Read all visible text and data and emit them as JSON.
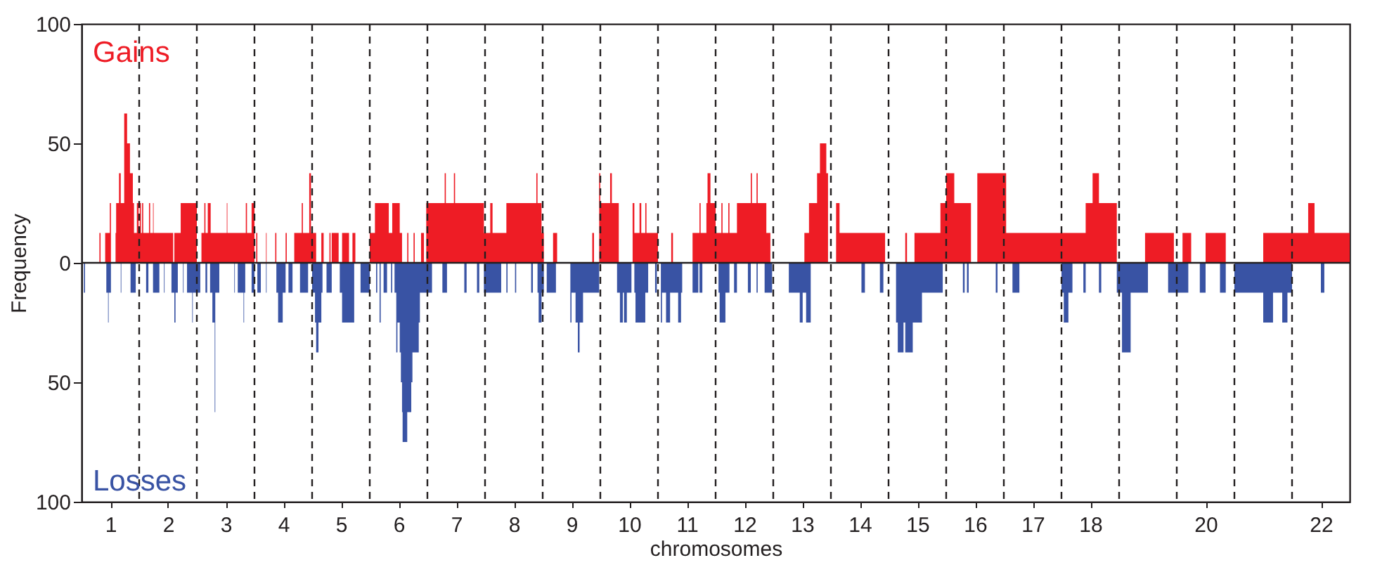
{
  "chart_data": {
    "type": "area",
    "xlabel": "chromosomes",
    "ylabel": "Frequency",
    "xlim": [
      0.5,
      22.5
    ],
    "ylim": [
      -100,
      100
    ],
    "xticks": [
      1,
      2,
      3,
      4,
      5,
      6,
      7,
      8,
      9,
      10,
      11,
      12,
      13,
      14,
      15,
      16,
      17,
      18,
      20,
      22
    ],
    "yticks": [
      {
        "value": -100,
        "label": "100"
      },
      {
        "value": -50,
        "label": "50"
      },
      0,
      50,
      100
    ],
    "grid": false,
    "ref_lines": [
      {
        "axis": "y",
        "value": 0,
        "line_style": "solid",
        "color": "#231f20"
      },
      {
        "axis": "x",
        "value": 1.5,
        "line_style": "dashed",
        "color": "#231f20"
      },
      {
        "axis": "x",
        "value": 2.5,
        "line_style": "dashed",
        "color": "#231f20"
      },
      {
        "axis": "x",
        "value": 3.5,
        "line_style": "dashed",
        "color": "#231f20"
      },
      {
        "axis": "x",
        "value": 4.5,
        "line_style": "dashed",
        "color": "#231f20"
      },
      {
        "axis": "x",
        "value": 5.5,
        "line_style": "dashed",
        "color": "#231f20"
      },
      {
        "axis": "x",
        "value": 6.5,
        "line_style": "dashed",
        "color": "#231f20"
      },
      {
        "axis": "x",
        "value": 7.5,
        "line_style": "dashed",
        "color": "#231f20"
      },
      {
        "axis": "x",
        "value": 8.5,
        "line_style": "dashed",
        "color": "#231f20"
      },
      {
        "axis": "x",
        "value": 9.5,
        "line_style": "dashed",
        "color": "#231f20"
      },
      {
        "axis": "x",
        "value": 10.5,
        "line_style": "dashed",
        "color": "#231f20"
      },
      {
        "axis": "x",
        "value": 11.5,
        "line_style": "dashed",
        "color": "#231f20"
      },
      {
        "axis": "x",
        "value": 12.5,
        "line_style": "dashed",
        "color": "#231f20"
      },
      {
        "axis": "x",
        "value": 13.5,
        "line_style": "dashed",
        "color": "#231f20"
      },
      {
        "axis": "x",
        "value": 14.5,
        "line_style": "dashed",
        "color": "#231f20"
      },
      {
        "axis": "x",
        "value": 15.5,
        "line_style": "dashed",
        "color": "#231f20"
      },
      {
        "axis": "x",
        "value": 16.5,
        "line_style": "dashed",
        "color": "#231f20"
      },
      {
        "axis": "x",
        "value": 17.5,
        "line_style": "dashed",
        "color": "#231f20"
      },
      {
        "axis": "x",
        "value": 18.5,
        "line_style": "dashed",
        "color": "#231f20"
      },
      {
        "axis": "x",
        "value": 19.5,
        "line_style": "dashed",
        "color": "#231f20"
      },
      {
        "axis": "x",
        "value": 20.5,
        "line_style": "dashed",
        "color": "#231f20"
      },
      {
        "axis": "x",
        "value": 21.5,
        "line_style": "dashed",
        "color": "#231f20"
      }
    ],
    "series": [
      {
        "name": "Gains",
        "color": "#ee1c25",
        "x": [
          0.5,
          0.81,
          0.83,
          0.91,
          0.99,
          1.01,
          1.09,
          1.1,
          1.15,
          1.18,
          1.24,
          1.29,
          1.34,
          1.39,
          1.41,
          1.46,
          1.49,
          1.51,
          1.53,
          1.55,
          1.57,
          1.67,
          1.69,
          1.74,
          1.75,
          2.09,
          2.11,
          2.22,
          2.5,
          2.58,
          2.63,
          2.65,
          2.69,
          2.74,
          3.02,
          3.03,
          3.35,
          3.37,
          3.45,
          3.5,
          3.53,
          3.55,
          3.7,
          3.71,
          3.86,
          3.88,
          4.04,
          4.06,
          4.19,
          4.32,
          4.34,
          4.45,
          4.48,
          4.57,
          4.66,
          4.7,
          4.8,
          4.82,
          4.84,
          4.96,
          5.02,
          5.14,
          5.2,
          5.25,
          5.5,
          5.59,
          5.83,
          5.89,
          6.02,
          6.06,
          6.15,
          6.17,
          6.26,
          6.28,
          6.39,
          6.44,
          6.48,
          6.8,
          6.82,
          6.96,
          6.98,
          7.48,
          7.59,
          7.63,
          7.78,
          7.87,
          8.39,
          8.41,
          8.48,
          8.52,
          8.68,
          8.75,
          9.36,
          9.39,
          9.48,
          9.5,
          9.67,
          9.7,
          9.82,
          10.06,
          10.09,
          10.18,
          10.21,
          10.28,
          10.3,
          10.5,
          10.73,
          10.76,
          11.1,
          11.22,
          11.24,
          11.34,
          11.36,
          11.41,
          11.5,
          11.6,
          11.62,
          11.72,
          11.74,
          11.87,
          12.11,
          12.13,
          12.21,
          12.23,
          12.38,
          12.45,
          13.04,
          13.12,
          13.26,
          13.31,
          13.42,
          13.45,
          13.59,
          13.65,
          14.44,
          14.79,
          14.82,
          14.95,
          15.4,
          15.5,
          15.64,
          15.93,
          16.04,
          16.54,
          17.92,
          18.04,
          18.15,
          18.46,
          18.95,
          19.45,
          19.6,
          19.75,
          20.0,
          20.35,
          21.0,
          21.78,
          21.89,
          22.5
        ],
        "values": [
          0,
          12.5,
          0,
          12.5,
          25,
          0,
          12.5,
          25,
          37.5,
          25,
          62.5,
          50,
          37.5,
          25,
          12.5,
          25,
          12.5,
          25,
          12.5,
          25,
          12.5,
          25,
          12.5,
          25,
          12.5,
          0,
          12.5,
          25,
          0,
          12.5,
          25,
          12.5,
          25,
          12.5,
          25,
          12.5,
          25,
          12.5,
          25,
          0,
          12.5,
          0,
          12.5,
          0,
          12.5,
          0,
          12.5,
          0,
          12.5,
          25,
          12.5,
          37.5,
          12.5,
          0,
          12.5,
          0,
          12.5,
          0,
          12.5,
          0,
          12.5,
          0,
          12.5,
          0,
          12.5,
          25,
          12.5,
          25,
          12.5,
          0,
          12.5,
          0,
          12.5,
          0,
          12.5,
          0,
          25,
          37.5,
          25,
          37.5,
          25,
          12.5,
          25,
          12.5,
          12.5,
          25,
          37.5,
          25,
          12.5,
          0,
          12.5,
          0,
          12.5,
          0,
          37.5,
          25,
          37.5,
          25,
          0,
          25,
          12.5,
          25,
          12.5,
          25,
          12.5,
          0,
          12.5,
          0,
          12.5,
          25,
          12.5,
          25,
          37.5,
          25,
          12.5,
          25,
          12.5,
          25,
          12.5,
          25,
          37.5,
          25,
          37.5,
          25,
          12.5,
          0,
          12.5,
          25,
          37.5,
          50,
          37.5,
          0,
          25,
          12.5,
          0,
          12.5,
          0,
          12.5,
          25,
          37.5,
          25,
          0,
          37.5,
          12.5,
          25,
          37.5,
          25,
          0,
          12.5,
          0,
          12.5,
          0,
          12.5,
          0,
          12.5,
          25,
          12.5,
          0
        ]
      },
      {
        "name": "Losses",
        "color": "#3953a4",
        "x": [
          0.5,
          0.54,
          0.56,
          0.93,
          0.96,
          0.97,
          1.01,
          1.18,
          1.19,
          1.35,
          1.44,
          1.62,
          1.66,
          1.74,
          1.85,
          1.93,
          1.94,
          2.06,
          2.11,
          2.13,
          2.17,
          2.26,
          2.27,
          2.33,
          2.42,
          2.43,
          2.56,
          2.65,
          2.68,
          2.73,
          2.77,
          2.81,
          2.82,
          2.89,
          3.15,
          3.16,
          3.21,
          3.31,
          3.32,
          3.34,
          3.45,
          3.5,
          3.55,
          3.61,
          3.7,
          3.71,
          3.88,
          3.91,
          3.99,
          4.04,
          4.09,
          4.16,
          4.29,
          4.43,
          4.5,
          4.55,
          4.57,
          4.61,
          4.66,
          4.68,
          4.75,
          4.84,
          4.98,
          5.02,
          5.23,
          5.34,
          5.5,
          5.61,
          5.63,
          5.67,
          5.69,
          5.74,
          5.8,
          5.87,
          5.89,
          5.93,
          5.96,
          5.98,
          6.02,
          6.04,
          6.06,
          6.07,
          6.15,
          6.22,
          6.24,
          6.35,
          6.37,
          6.58,
          6.76,
          6.84,
          7.14,
          7.18,
          7.36,
          7.4,
          7.48,
          7.78,
          7.87,
          7.89,
          8.02,
          8.04,
          8.3,
          8.33,
          8.41,
          8.43,
          8.48,
          8.52,
          8.57,
          8.73,
          8.98,
          9.0,
          9.07,
          9.11,
          9.14,
          9.2,
          9.48,
          9.79,
          9.84,
          9.89,
          9.91,
          9.96,
          10.04,
          10.09,
          10.11,
          10.28,
          10.33,
          10.45,
          10.48,
          10.55,
          10.57,
          10.64,
          10.71,
          10.85,
          10.9,
          10.92,
          11.1,
          11.2,
          11.22,
          11.27,
          11.55,
          11.57,
          11.67,
          11.74,
          11.82,
          11.87,
          12.06,
          12.11,
          12.21,
          12.23,
          12.35,
          12.48,
          12.77,
          12.96,
          13.01,
          13.07,
          13.15,
          14.03,
          14.09,
          14.35,
          14.41,
          14.63,
          14.66,
          14.76,
          14.79,
          14.92,
          15.08,
          15.44,
          15.79,
          15.82,
          15.86,
          15.89,
          16.36,
          16.39,
          16.65,
          16.77,
          17.5,
          17.54,
          17.62,
          17.69,
          17.88,
          17.92,
          18.15,
          18.19,
          18.46,
          18.55,
          18.7,
          19.0,
          19.35,
          19.7,
          19.9,
          20.0,
          20.25,
          20.35,
          20.5,
          21.0,
          21.17,
          21.33,
          21.42,
          21.5,
          22.0,
          22.06,
          22.5
        ],
        "values": [
          0,
          -12.5,
          0,
          -12.5,
          -25,
          -12.5,
          0,
          -12.5,
          0,
          -12.5,
          0,
          -12.5,
          0,
          -12.5,
          0,
          -12.5,
          0,
          -12.5,
          -25,
          -12.5,
          0,
          -12.5,
          0,
          -12.5,
          -25,
          -12.5,
          0,
          -12.5,
          0,
          -12.5,
          -25,
          -62.5,
          -12.5,
          0,
          -12.5,
          0,
          -12.5,
          -25,
          -12.5,
          0,
          -12.5,
          0,
          -12.5,
          0,
          -12.5,
          0,
          -12.5,
          -25,
          -12.5,
          0,
          -12.5,
          0,
          -12.5,
          0,
          -12.5,
          -25,
          -37.5,
          -25,
          -12.5,
          0,
          -12.5,
          0,
          -12.5,
          -25,
          0,
          -12.5,
          0,
          -12.5,
          0,
          -25,
          0,
          -12.5,
          0,
          -12.5,
          0,
          -12.5,
          -37.5,
          -25,
          -37.5,
          -50,
          -62.5,
          -75,
          -62.5,
          -50,
          -37.5,
          -25,
          -12.5,
          0,
          -12.5,
          0,
          -12.5,
          0,
          -12.5,
          0,
          -12.5,
          0,
          -12.5,
          0,
          -12.5,
          0,
          -12.5,
          0,
          -12.5,
          -25,
          -12.5,
          0,
          -12.5,
          0,
          -25,
          -12.5,
          -25,
          -37.5,
          -25,
          -12.5,
          0,
          -12.5,
          -25,
          -12.5,
          -25,
          -12.5,
          0,
          -12.5,
          -25,
          -12.5,
          0,
          -12.5,
          0,
          -25,
          -12.5,
          -25,
          -12.5,
          -25,
          -12.5,
          0,
          -12.5,
          0,
          -12.5,
          0,
          -12.5,
          -25,
          -12.5,
          0,
          -12.5,
          0,
          -12.5,
          0,
          -12.5,
          0,
          -12.5,
          0,
          -12.5,
          -25,
          -12.5,
          -25,
          0,
          -12.5,
          0,
          -12.5,
          0,
          -25,
          -37.5,
          -25,
          -37.5,
          -25,
          -12.5,
          0,
          -12.5,
          0,
          -12.5,
          0,
          -12.5,
          0,
          -12.5,
          0,
          -12.5,
          -25,
          -12.5,
          0,
          -12.5,
          0,
          -12.5,
          0,
          -12.5,
          -37.5,
          -12.5,
          0,
          -12.5,
          0,
          -12.5,
          0,
          -12.5,
          0,
          -12.5,
          -25,
          -12.5,
          -25,
          -12.5,
          0,
          -12.5,
          0,
          0
        ]
      }
    ]
  }
}
